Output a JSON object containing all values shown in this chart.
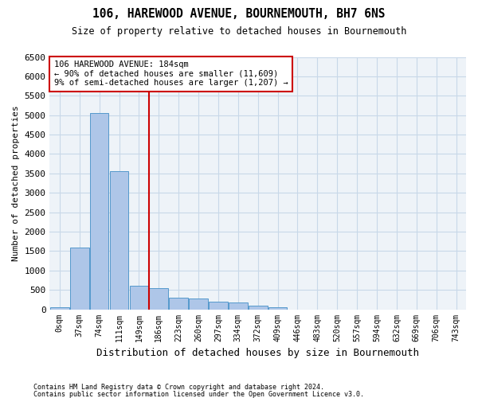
{
  "title": "106, HAREWOOD AVENUE, BOURNEMOUTH, BH7 6NS",
  "subtitle": "Size of property relative to detached houses in Bournemouth",
  "xlabel": "Distribution of detached houses by size in Bournemouth",
  "ylabel": "Number of detached properties",
  "footer_line1": "Contains HM Land Registry data © Crown copyright and database right 2024.",
  "footer_line2": "Contains public sector information licensed under the Open Government Licence v3.0.",
  "bin_labels": [
    "0sqm",
    "37sqm",
    "74sqm",
    "111sqm",
    "149sqm",
    "186sqm",
    "223sqm",
    "260sqm",
    "297sqm",
    "334sqm",
    "372sqm",
    "409sqm",
    "446sqm",
    "483sqm",
    "520sqm",
    "557sqm",
    "594sqm",
    "632sqm",
    "669sqm",
    "706sqm",
    "743sqm"
  ],
  "bar_values": [
    50,
    1600,
    5050,
    3550,
    600,
    550,
    300,
    270,
    200,
    170,
    90,
    50,
    0,
    0,
    0,
    0,
    0,
    0,
    0,
    0,
    0
  ],
  "bar_color": "#aec6e8",
  "bar_edge_color": "#5599cc",
  "grid_color": "#c8d8e8",
  "background_color": "#eef3f8",
  "annotation_box_color": "#cc0000",
  "vline_color": "#cc0000",
  "vline_x": 4.5,
  "annotation_text": "106 HAREWOOD AVENUE: 184sqm\n← 90% of detached houses are smaller (11,609)\n9% of semi-detached houses are larger (1,207) →",
  "ylim": [
    0,
    6500
  ],
  "yticks": [
    0,
    500,
    1000,
    1500,
    2000,
    2500,
    3000,
    3500,
    4000,
    4500,
    5000,
    5500,
    6000,
    6500
  ]
}
